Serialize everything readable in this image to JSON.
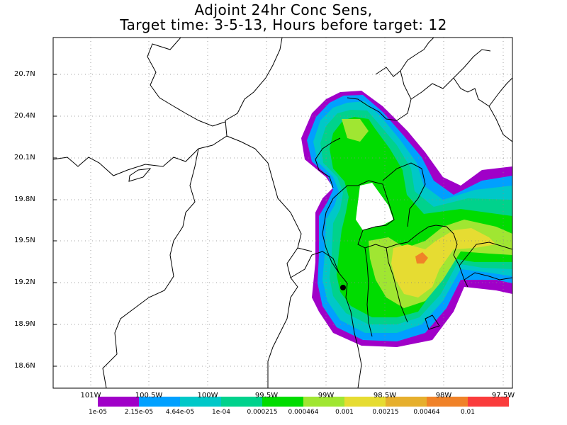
{
  "title": {
    "line1": "Adjoint 24hr Conc Sens,",
    "line2": "Target time: 3-5-13, Hours before target: 12"
  },
  "axes": {
    "lat_labels": [
      "20.7N",
      "20.4N",
      "20.1N",
      "19.8N",
      "19.5N",
      "19.2N",
      "18.9N",
      "18.6N"
    ],
    "lon_labels": [
      "101W",
      "100.5W",
      "100W",
      "99.5W",
      "99W",
      "98.5W",
      "98W",
      "97.5W"
    ],
    "grid": "dotted"
  },
  "colorbar": {
    "labels": [
      "1e-05",
      "2.15e-05",
      "4.64e-05",
      "1e-04",
      "0.000215",
      "0.000464",
      "0.001",
      "0.00215",
      "0.00464",
      "0.01"
    ],
    "colors": [
      "#a000c8",
      "#00a0ff",
      "#00c8c8",
      "#00d28c",
      "#00dc00",
      "#a0e632",
      "#e6dc32",
      "#e6af2d",
      "#f08228",
      "#fa3c3c",
      "#f00082"
    ]
  },
  "marker": {
    "label": "target-point",
    "color": "#000000"
  }
}
